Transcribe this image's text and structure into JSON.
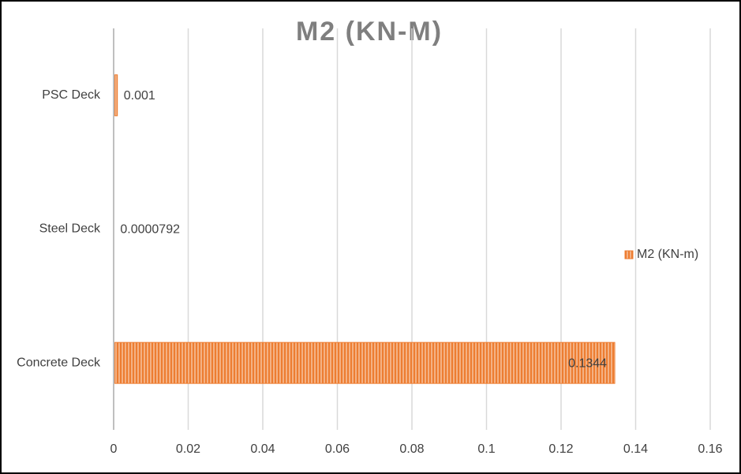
{
  "chart_data": {
    "type": "bar",
    "orientation": "horizontal",
    "title": "M2 (KN-M)",
    "categories": [
      "Concrete Deck",
      "Steel Deck",
      "PSC Deck"
    ],
    "series": [
      {
        "name": "M2 (KN-m)",
        "color": "#ed7d31",
        "values": [
          0.1344,
          7.92e-05,
          0.001
        ],
        "value_labels": [
          "0.1344",
          "0.0000792",
          "0.001"
        ]
      }
    ],
    "xlim": [
      0,
      0.16
    ],
    "xticks": [
      0,
      0.02,
      0.04,
      0.06,
      0.08,
      0.1,
      0.12,
      0.14,
      0.16
    ],
    "grid": true,
    "legend": "right"
  }
}
